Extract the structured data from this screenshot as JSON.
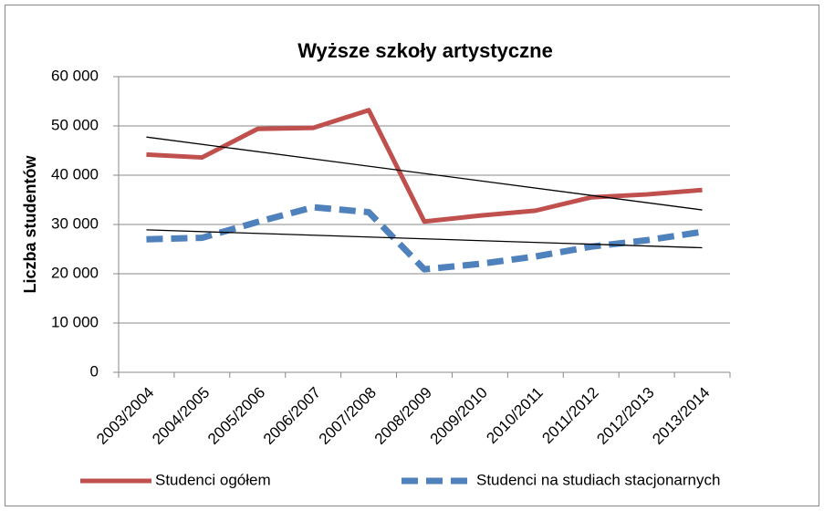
{
  "chart_data": {
    "type": "line",
    "title": "Wyższe szkoły artystyczne",
    "y_label": "Liczba studentów",
    "categories": [
      "2003/2004",
      "2004/2005",
      "2005/2006",
      "2006/2007",
      "2007/2008",
      "2008/2009",
      "2009/2010",
      "2010/2011",
      "2011/2012",
      "2012/2013",
      "2013/2014"
    ],
    "series": [
      {
        "name": "Studenci ogółem",
        "color": "#c0504d",
        "dashed": false,
        "trendline": "linear",
        "values": [
          44200,
          43600,
          49400,
          49600,
          53200,
          30600,
          31800,
          32800,
          35500,
          36100,
          37000
        ]
      },
      {
        "name": "Studenci na studiach stacjonarnych",
        "color": "#4f81bd",
        "dashed": true,
        "trendline": "linear",
        "values": [
          27000,
          27300,
          30500,
          33500,
          32500,
          20900,
          22000,
          23500,
          25500,
          26800,
          28500
        ]
      }
    ],
    "ylim": [
      0,
      60000
    ],
    "yticks": [
      0,
      {
        "value": 10000,
        "label": "10 000"
      },
      {
        "value": 20000,
        "label": "20 000"
      },
      {
        "value": 30000,
        "label": "30 000"
      },
      {
        "value": 40000,
        "label": "40 000"
      },
      {
        "value": 50000,
        "label": "50 000"
      },
      {
        "value": 60000,
        "label": "60 000"
      }
    ],
    "grid": true,
    "legend": "bottom"
  }
}
